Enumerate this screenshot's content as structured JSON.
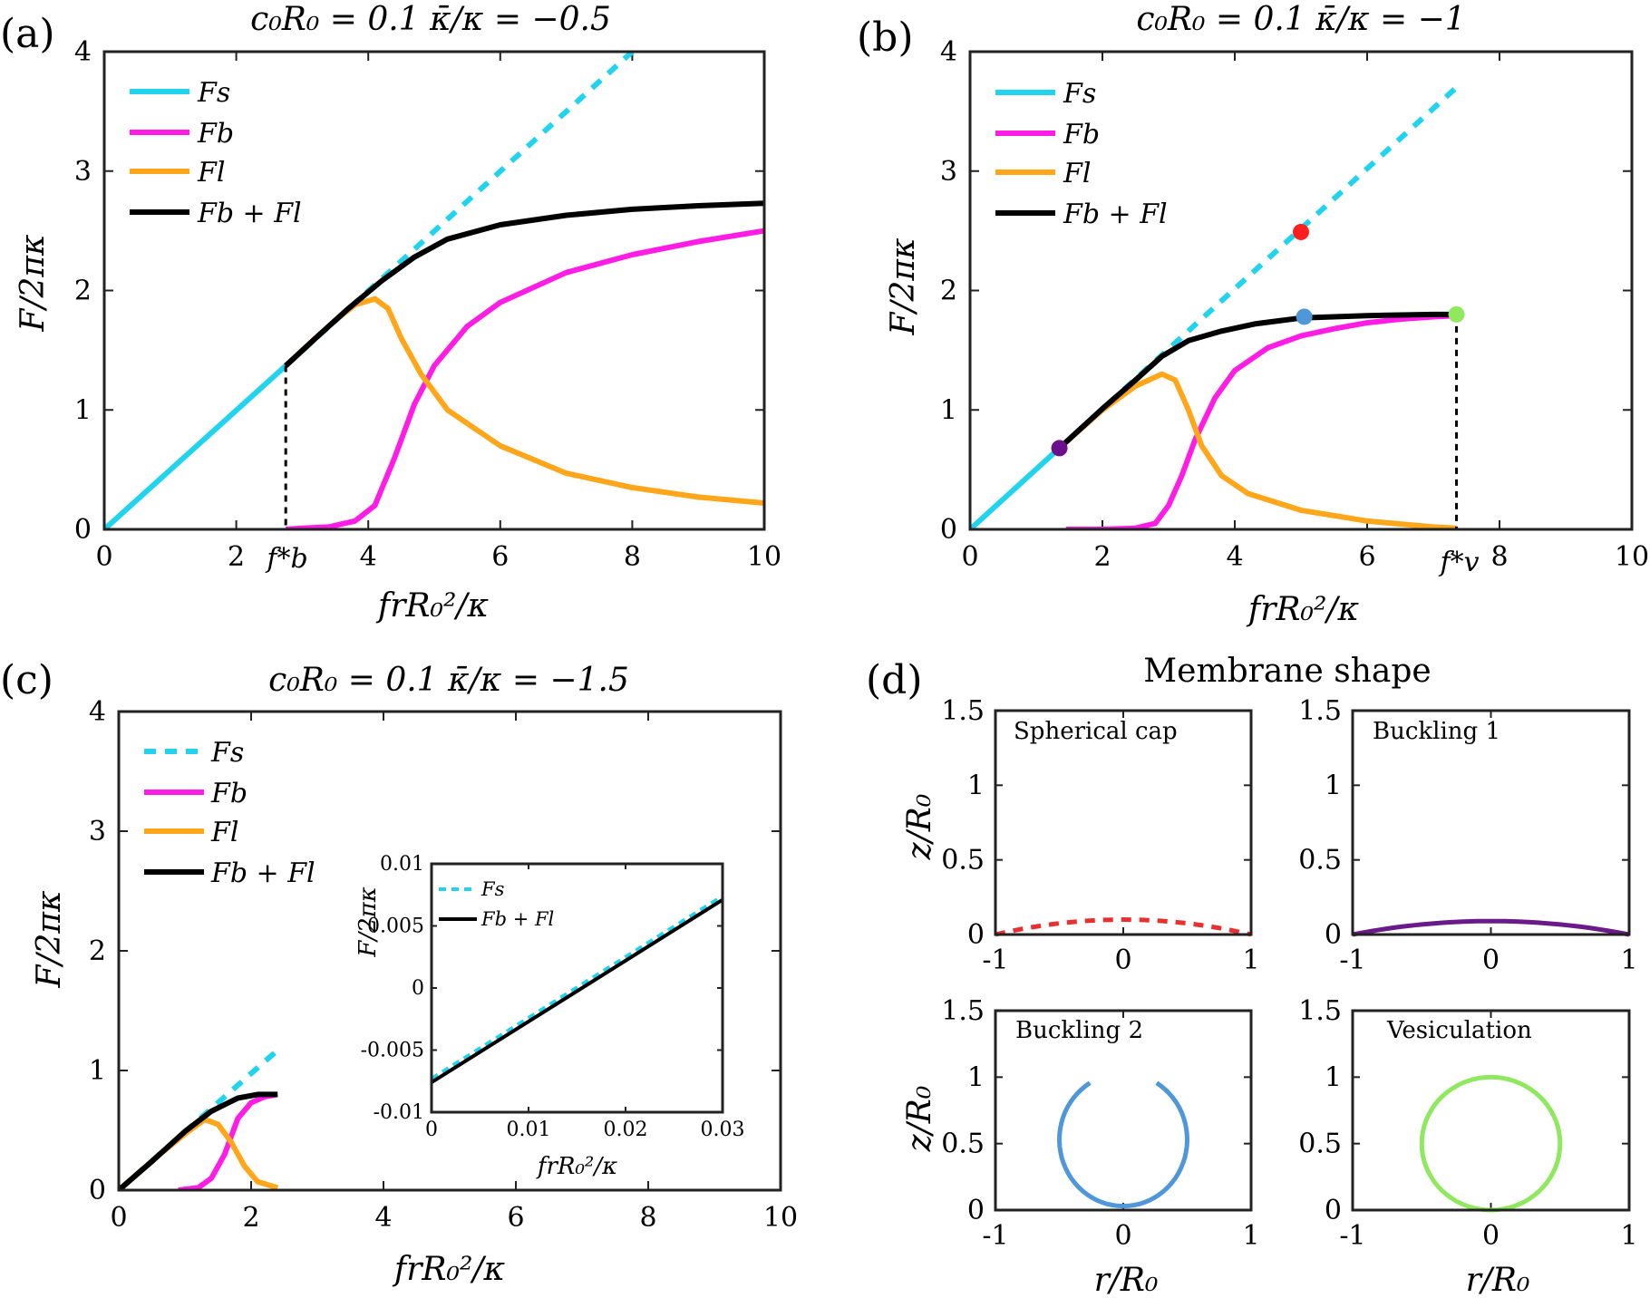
{
  "panels": {
    "a": {
      "label": "(a)",
      "title": "c₀R₀ = 0.1  κ̄/κ = −0.5",
      "marker": "f*b"
    },
    "b": {
      "label": "(b)",
      "title": "c₀R₀ = 0.1  κ̄/κ = −1",
      "marker": "f*v"
    },
    "c": {
      "label": "(c)",
      "title": "c₀R₀ = 0.1  κ̄/κ = −1.5"
    },
    "d": {
      "label": "(d)",
      "title": "Membrane shape"
    }
  },
  "axes": {
    "ylabel": "F/2πκ",
    "xlabel": "frR₀²/κ",
    "shape_ylabel": "z/R₀",
    "shape_xlabel": "r/R₀"
  },
  "legend": {
    "fs": "Fs",
    "fb": "Fb",
    "fl": "Fl",
    "fbfl": "Fb + Fl"
  },
  "colors": {
    "Fs": "#22d3ee",
    "Fb": "#ff1de5",
    "Fl": "#ffa61a",
    "Fb+Fl": "#000000"
  },
  "chart_data": [
    {
      "id": "a",
      "type": "line",
      "xlim": [
        0,
        10
      ],
      "ylim": [
        0,
        4
      ],
      "xticks": [
        0,
        2,
        4,
        6,
        8,
        10
      ],
      "yticks": [
        0,
        1,
        2,
        3,
        4
      ],
      "fb_star": 2.75,
      "legend_position": "top-left",
      "series": [
        {
          "name": "Fs",
          "style": "solid",
          "x": [
            0,
            2.75
          ],
          "y": [
            0,
            1.37
          ]
        },
        {
          "name": "Fs",
          "style": "dashed",
          "x": [
            2.75,
            8.0
          ],
          "y": [
            1.37,
            4.0
          ]
        },
        {
          "name": "Fb",
          "x": [
            2.75,
            3.0,
            3.4,
            3.8,
            4.1,
            4.4,
            4.7,
            5.0,
            5.5,
            6.0,
            7.0,
            8.0,
            9.0,
            10.0
          ],
          "y": [
            0.0,
            0.01,
            0.02,
            0.07,
            0.2,
            0.6,
            1.05,
            1.37,
            1.7,
            1.9,
            2.15,
            2.3,
            2.41,
            2.5
          ]
        },
        {
          "name": "Fl",
          "x": [
            2.75,
            3.0,
            3.5,
            3.8,
            4.1,
            4.3,
            4.5,
            4.8,
            5.2,
            6.0,
            7.0,
            8.0,
            9.0,
            10.0
          ],
          "y": [
            1.37,
            1.5,
            1.75,
            1.88,
            1.93,
            1.85,
            1.6,
            1.3,
            1.0,
            0.7,
            0.47,
            0.35,
            0.27,
            0.22
          ]
        },
        {
          "name": "Fb + Fl",
          "x": [
            2.75,
            3.2,
            3.7,
            4.2,
            4.7,
            5.2,
            6.0,
            7.0,
            8.0,
            9.0,
            10.0
          ],
          "y": [
            1.37,
            1.6,
            1.85,
            2.08,
            2.28,
            2.43,
            2.55,
            2.63,
            2.68,
            2.71,
            2.73
          ]
        }
      ]
    },
    {
      "id": "b",
      "type": "line",
      "xlim": [
        0,
        10
      ],
      "ylim": [
        0,
        4
      ],
      "xticks": [
        0,
        2,
        4,
        6,
        8,
        10
      ],
      "yticks": [
        0,
        1,
        2,
        3,
        4
      ],
      "fv_star": 7.35,
      "legend_position": "top-left",
      "series": [
        {
          "name": "Fs",
          "style": "solid",
          "x": [
            0,
            1.35
          ],
          "y": [
            0,
            0.68
          ]
        },
        {
          "name": "Fs",
          "style": "dashed",
          "x": [
            1.35,
            7.35
          ],
          "y": [
            0.68,
            3.7
          ]
        },
        {
          "name": "Fb",
          "x": [
            1.45,
            2.0,
            2.5,
            2.8,
            3.0,
            3.2,
            3.4,
            3.7,
            4.0,
            4.5,
            5.0,
            5.5,
            6.0,
            6.5,
            7.0,
            7.35
          ],
          "y": [
            0.0,
            0.0,
            0.01,
            0.05,
            0.2,
            0.45,
            0.75,
            1.1,
            1.33,
            1.52,
            1.62,
            1.68,
            1.73,
            1.76,
            1.78,
            1.79
          ]
        },
        {
          "name": "Fl",
          "x": [
            1.35,
            2.0,
            2.5,
            2.9,
            3.1,
            3.3,
            3.5,
            3.8,
            4.2,
            5.0,
            6.0,
            7.0,
            7.35
          ],
          "y": [
            0.68,
            1.0,
            1.2,
            1.3,
            1.25,
            1.0,
            0.7,
            0.45,
            0.3,
            0.16,
            0.07,
            0.02,
            0.01
          ]
        },
        {
          "name": "Fb + Fl",
          "x": [
            1.35,
            2.0,
            2.5,
            2.9,
            3.3,
            3.8,
            4.3,
            5.0,
            6.0,
            7.0,
            7.35
          ],
          "y": [
            0.68,
            1.01,
            1.25,
            1.45,
            1.58,
            1.66,
            1.72,
            1.77,
            1.79,
            1.8,
            1.8
          ]
        }
      ],
      "points": [
        {
          "x": 1.35,
          "y": 0.68,
          "color": "#6b0f8c"
        },
        {
          "x": 5.0,
          "y": 2.49,
          "color": "#ff1f1f"
        },
        {
          "x": 5.05,
          "y": 1.78,
          "color": "#4f97d8"
        },
        {
          "x": 7.35,
          "y": 1.8,
          "color": "#8fe860"
        }
      ]
    },
    {
      "id": "c",
      "type": "line",
      "xlim": [
        0,
        10
      ],
      "ylim": [
        0,
        4
      ],
      "xticks": [
        0,
        2,
        4,
        6,
        8,
        10
      ],
      "yticks": [
        0,
        1,
        2,
        3,
        4
      ],
      "legend_position": "top-left",
      "series": [
        {
          "name": "Fs",
          "style": "dashed",
          "x": [
            0,
            2.4
          ],
          "y": [
            0,
            1.17
          ]
        },
        {
          "name": "Fb",
          "x": [
            0.9,
            1.2,
            1.4,
            1.6,
            1.8,
            2.0,
            2.2,
            2.4
          ],
          "y": [
            0.0,
            0.02,
            0.1,
            0.3,
            0.6,
            0.73,
            0.78,
            0.8
          ]
        },
        {
          "name": "Fl",
          "x": [
            0,
            0.6,
            1.0,
            1.3,
            1.5,
            1.7,
            1.9,
            2.1,
            2.4
          ],
          "y": [
            0,
            0.29,
            0.47,
            0.59,
            0.55,
            0.4,
            0.2,
            0.07,
            0.02
          ]
        },
        {
          "name": "Fb + Fl",
          "x": [
            0,
            0.5,
            1.0,
            1.4,
            1.8,
            2.1,
            2.4
          ],
          "y": [
            0,
            0.24,
            0.49,
            0.66,
            0.77,
            0.8,
            0.8
          ]
        }
      ]
    },
    {
      "id": "c-inset",
      "type": "line",
      "xlim": [
        0,
        0.03
      ],
      "ylim": [
        -0.01,
        0.01
      ],
      "xticks": [
        0,
        0.01,
        0.02,
        0.03
      ],
      "yticks": [
        -0.01,
        -0.005,
        0,
        0.005,
        0.01
      ],
      "xtick_labels": [
        "0",
        "0.01",
        "0.02",
        "0.03"
      ],
      "ytick_labels": [
        "-0.01",
        "-0.005",
        "0",
        "0.005",
        "0.01"
      ],
      "legend_position": "top-left",
      "series": [
        {
          "name": "Fs",
          "style": "dashed",
          "x": [
            0,
            0.03
          ],
          "y": [
            -0.0073,
            0.0074
          ]
        },
        {
          "name": "Fb + Fl",
          "x": [
            0,
            0.03
          ],
          "y": [
            -0.0076,
            0.0071
          ]
        }
      ]
    }
  ],
  "shapes": [
    {
      "label": "Spherical cap",
      "style": "dashed",
      "color": "#e83030",
      "type": "cap",
      "height": 0.1
    },
    {
      "label": "Buckling 1",
      "style": "solid",
      "color": "#6b1a8a",
      "type": "cap",
      "height": 0.09
    },
    {
      "label": "Buckling 2",
      "style": "solid",
      "color": "#4f97d8",
      "type": "omega"
    },
    {
      "label": "Vesiculation",
      "style": "solid",
      "color": "#8fe860",
      "type": "circle"
    }
  ],
  "shape_axes": {
    "xlim": [
      -1,
      1
    ],
    "ylim": [
      0,
      1.5
    ],
    "xticks": [
      -1,
      0,
      1
    ],
    "yticks": [
      0,
      0.5,
      1,
      1.5
    ],
    "ytick_labels": [
      "0",
      "0.5",
      "1",
      "1.5"
    ]
  }
}
